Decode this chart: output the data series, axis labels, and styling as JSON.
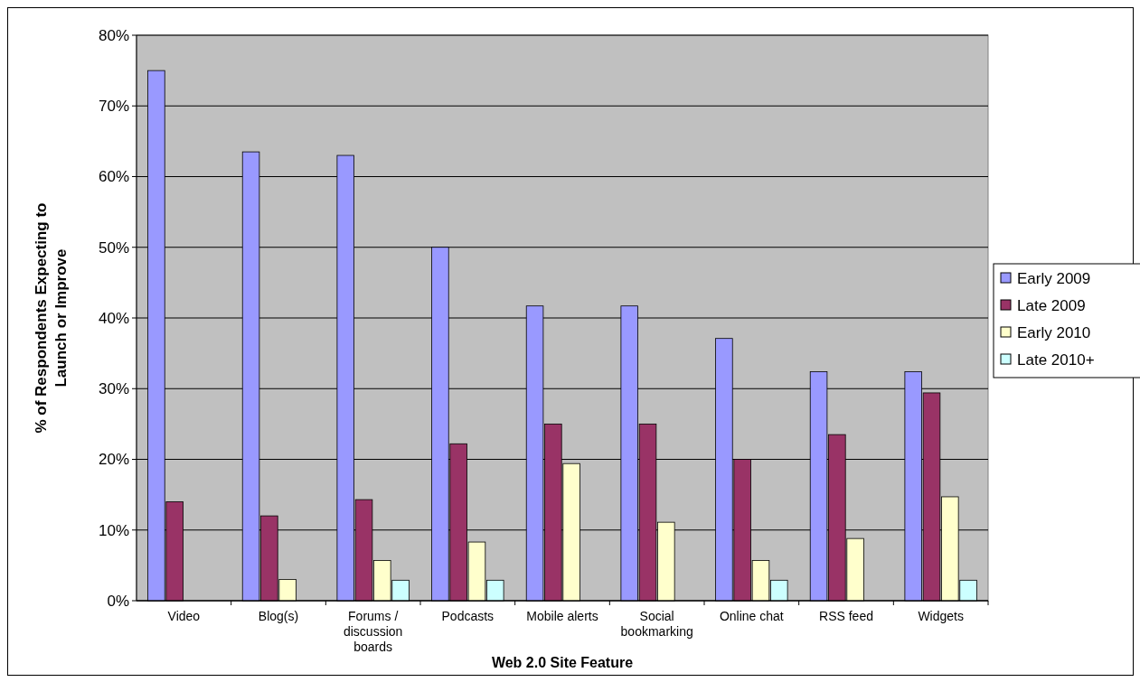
{
  "chart_data": {
    "type": "bar",
    "xlabel": "Web 2.0 Site Feature",
    "ylabel": "% of Respondents Expecting to Launch or Improve",
    "categories": [
      "Video",
      "Blog(s)",
      "Forums / discussion boards",
      "Podcasts",
      "Mobile alerts",
      "Social bookmarking",
      "Online chat",
      "RSS feed",
      "Widgets"
    ],
    "series": [
      {
        "name": "Early 2009",
        "color": "#9999ff",
        "values": [
          75,
          63.5,
          63,
          50,
          41.7,
          41.7,
          37.1,
          32.4,
          32.4
        ]
      },
      {
        "name": "Late 2009",
        "color": "#993366",
        "values": [
          14,
          12,
          14.3,
          22.2,
          25,
          25,
          20,
          23.5,
          29.4
        ]
      },
      {
        "name": "Early 2010",
        "color": "#ffffcc",
        "values": [
          0,
          3,
          5.7,
          8.3,
          19.4,
          11.1,
          5.7,
          8.8,
          14.7
        ]
      },
      {
        "name": "Late 2010+",
        "color": "#ccffff",
        "values": [
          0,
          0,
          2.9,
          2.9,
          0,
          0,
          2.9,
          0,
          2.9
        ]
      }
    ],
    "ylim": [
      0,
      80
    ],
    "yticks": [
      {
        "value": 0,
        "label": "0%"
      },
      {
        "value": 10,
        "label": "10%"
      },
      {
        "value": 20,
        "label": "20%"
      },
      {
        "value": 30,
        "label": "30%"
      },
      {
        "value": 40,
        "label": "40%"
      },
      {
        "value": 50,
        "label": "50%"
      },
      {
        "value": 60,
        "label": "60%"
      },
      {
        "value": 70,
        "label": "70%"
      },
      {
        "value": 80,
        "label": "80%"
      }
    ],
    "grid": "y",
    "legend": "right"
  }
}
